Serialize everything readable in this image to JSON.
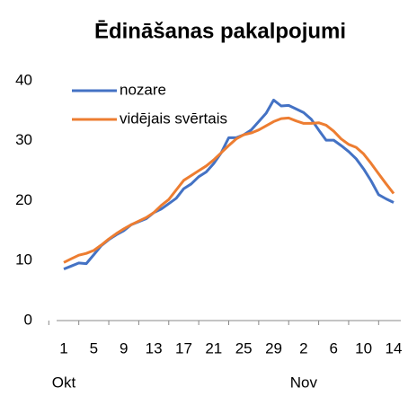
{
  "chart_data": {
    "type": "line",
    "title": "Ēdināšanas pakalpojumi",
    "categories": [
      "1",
      null,
      null,
      null,
      "5",
      null,
      null,
      null,
      "9",
      null,
      null,
      null,
      "13",
      null,
      null,
      null,
      "17",
      null,
      null,
      null,
      "21",
      null,
      null,
      null,
      "25",
      null,
      null,
      null,
      "29",
      null,
      null,
      null,
      "2",
      null,
      null,
      null,
      "6",
      null,
      null,
      null,
      "10",
      null,
      null,
      null,
      "14"
    ],
    "category_groups": [
      "Okt",
      "Nov"
    ],
    "group_starts": [
      0,
      31
    ],
    "series": [
      {
        "name": "nozare",
        "color": "#4472c4",
        "values": [
          8.6,
          9.1,
          9.6,
          9.5,
          11,
          12.5,
          13.5,
          14.3,
          15,
          16,
          16.5,
          17,
          18,
          18.6,
          19.5,
          20.4,
          22,
          22.8,
          24,
          24.8,
          26.2,
          28,
          30.5,
          30.5,
          31,
          31.8,
          33.2,
          34.6,
          36.8,
          35.8,
          35.9,
          35.3,
          34.7,
          33.6,
          31.8,
          30.1,
          30.1,
          29.2,
          28.2,
          27,
          25.3,
          23.3,
          21,
          20.3,
          19.7
        ]
      },
      {
        "name": "vidējais svērtais",
        "color": "#ed7d31",
        "values": [
          9.7,
          10.3,
          10.9,
          11.2,
          11.7,
          12.6,
          13.6,
          14.5,
          15.3,
          16,
          16.6,
          17.2,
          18,
          19.2,
          20.2,
          21.8,
          23.4,
          24.2,
          25,
          25.8,
          26.8,
          28,
          29.2,
          30.3,
          31,
          31.3,
          31.8,
          32.5,
          33.2,
          33.7,
          33.8,
          33.3,
          32.9,
          32.9,
          33,
          32.6,
          31.6,
          30.3,
          29.4,
          28.9,
          27.8,
          26.2,
          24.5,
          22.8,
          21.2
        ]
      }
    ],
    "ylim": [
      0,
      40
    ],
    "yticks": [
      0,
      10,
      20,
      30,
      40
    ],
    "grid": false,
    "legend": "upper-left"
  }
}
